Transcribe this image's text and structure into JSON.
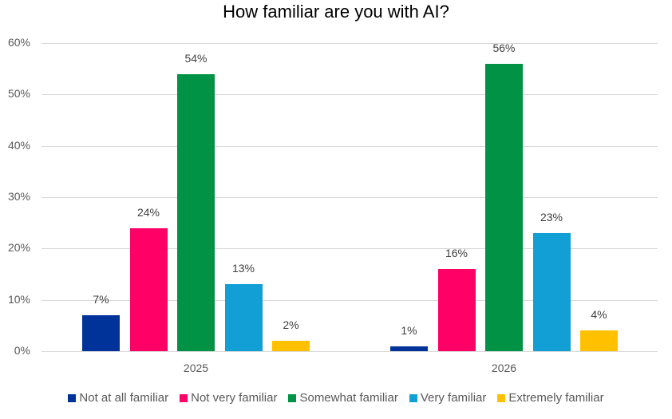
{
  "chart_data": {
    "type": "bar",
    "title": "How familiar are you with AI?",
    "xlabel": "",
    "ylabel": "",
    "ylim": [
      0,
      60
    ],
    "yticks": [
      "0%",
      "10%",
      "20%",
      "30%",
      "40%",
      "50%",
      "60%"
    ],
    "grid": true,
    "legend_position": "bottom",
    "categories": [
      "2025",
      "2026"
    ],
    "series": [
      {
        "name": "Not at all familiar",
        "color": "#003399",
        "values": [
          7,
          1
        ],
        "labels": [
          "7%",
          "1%"
        ]
      },
      {
        "name": "Not very familiar",
        "color": "#FF0066",
        "values": [
          24,
          16
        ],
        "labels": [
          "24%",
          "16%"
        ]
      },
      {
        "name": "Somewhat familiar",
        "color": "#009245",
        "values": [
          54,
          56
        ],
        "labels": [
          "54%",
          "56%"
        ]
      },
      {
        "name": "Very familiar",
        "color": "#129FD6",
        "values": [
          13,
          23
        ],
        "labels": [
          "13%",
          "23%"
        ]
      },
      {
        "name": "Extremely familiar",
        "color": "#FFC000",
        "values": [
          2,
          4
        ],
        "labels": [
          "2%",
          "4%"
        ]
      }
    ]
  }
}
